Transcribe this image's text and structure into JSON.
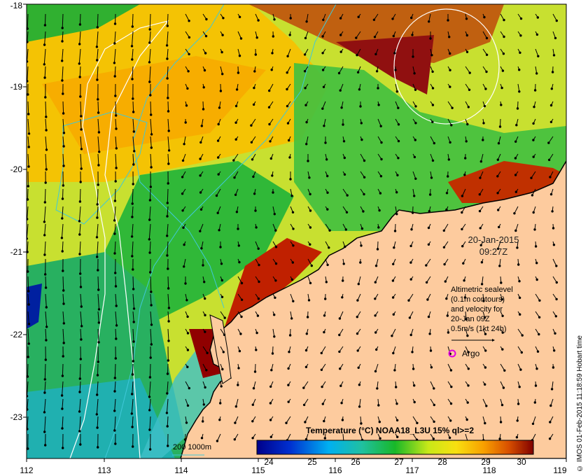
{
  "map": {
    "x_ticks": [
      "112",
      "113",
      "114",
      "115",
      "116",
      "117",
      "118",
      "119"
    ],
    "y_ticks": [
      "-18",
      "-19",
      "-20",
      "-21",
      "-22",
      "-23"
    ]
  },
  "date": {
    "day": "20-Jan-2015",
    "time": "09:27Z"
  },
  "velocity_legend": {
    "line1": "Altimetric sealevel",
    "line2": "(0.1m contours)",
    "line3": "and velocity for",
    "line4": "20-Jan 09Z",
    "line5": "0.5m/s (1kt 24h)"
  },
  "argo": {
    "label": "Argo",
    "color": "#e000e0"
  },
  "isobaths": {
    "label": "200  1000m",
    "color": "#40c8d8"
  },
  "colorbar": {
    "title": "Temperature (°C) NOAA18_L3U 15% ql>=2",
    "ticks": [
      "24",
      "25",
      "26",
      "27",
      "28",
      "29",
      "30"
    ]
  },
  "credit": "© IMOS 01-Feb-2015 11:18:59 Hobart time",
  "colors": {
    "land": "#fdcb9e",
    "coast": "#000000"
  }
}
